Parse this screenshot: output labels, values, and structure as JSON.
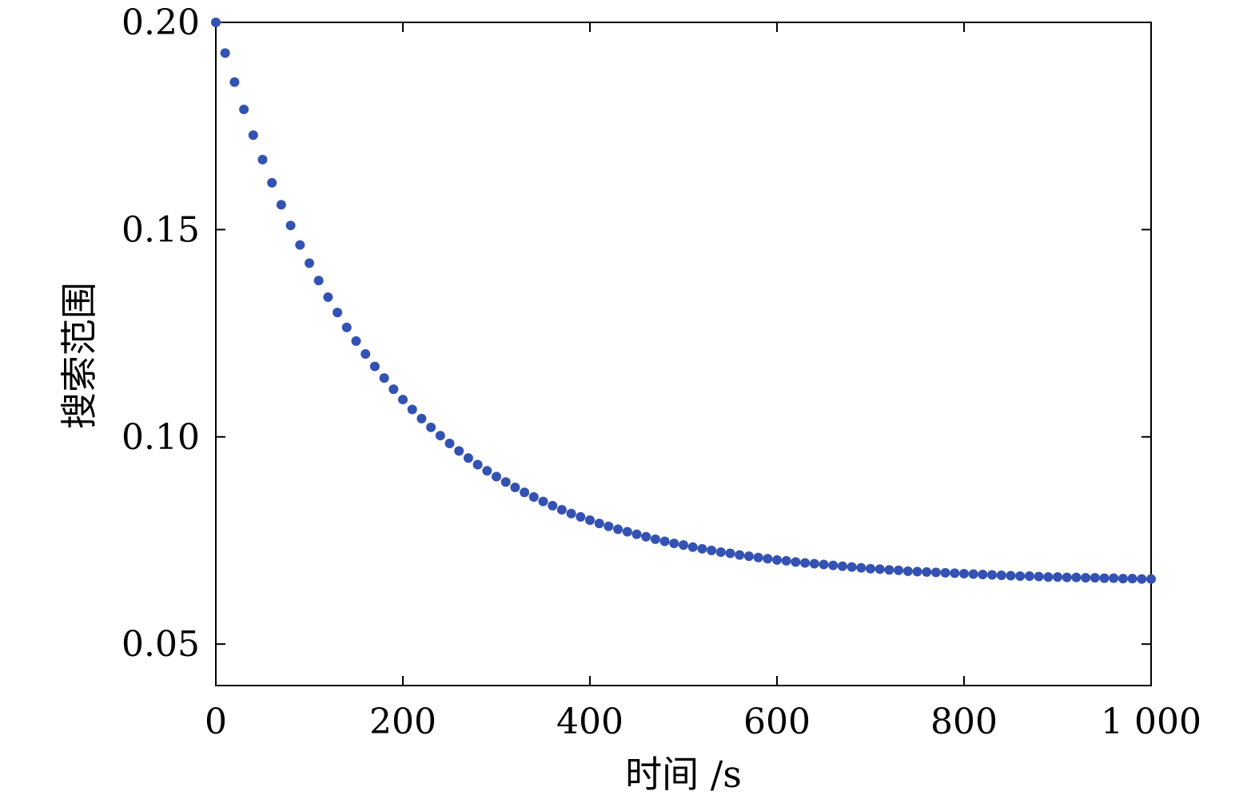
{
  "chart_data": {
    "type": "scatter",
    "title": "",
    "xlabel": "时间 /s",
    "ylabel": "搜索范围",
    "xlim": [
      0,
      1000
    ],
    "ylim": [
      0.04,
      0.2
    ],
    "grid": false,
    "legend": "none",
    "marker_color": "#3352b3",
    "axis_color": "#000000",
    "x_ticks": [
      0,
      200,
      400,
      600,
      800,
      1000
    ],
    "x_tick_labels": [
      "0",
      "200",
      "400",
      "600",
      "800",
      "1 000"
    ],
    "y_ticks": [
      0.05,
      0.1,
      0.15,
      0.2
    ],
    "y_tick_labels": [
      "0.05",
      "0.10",
      "0.15",
      "0.20"
    ],
    "x": [
      0,
      10,
      20,
      30,
      40,
      50,
      60,
      70,
      80,
      90,
      100,
      110,
      120,
      130,
      140,
      150,
      160,
      170,
      180,
      190,
      200,
      210,
      220,
      230,
      240,
      250,
      260,
      270,
      280,
      290,
      300,
      310,
      320,
      330,
      340,
      350,
      360,
      370,
      380,
      390,
      400,
      410,
      420,
      430,
      440,
      450,
      460,
      470,
      480,
      490,
      500,
      510,
      520,
      530,
      540,
      550,
      560,
      570,
      580,
      590,
      600,
      610,
      620,
      630,
      640,
      650,
      660,
      670,
      680,
      690,
      700,
      710,
      720,
      730,
      740,
      750,
      760,
      770,
      780,
      790,
      800,
      810,
      820,
      830,
      840,
      850,
      860,
      870,
      880,
      890,
      900,
      910,
      920,
      930,
      940,
      950,
      960,
      970,
      980,
      990,
      1000
    ],
    "y": [
      0.2,
      0.1926,
      0.1856,
      0.179,
      0.1728,
      0.1669,
      0.1613,
      0.156,
      0.151,
      0.1463,
      0.1419,
      0.1377,
      0.1337,
      0.13,
      0.1264,
      0.1231,
      0.12,
      0.117,
      0.1142,
      0.1115,
      0.109,
      0.1066,
      0.1044,
      0.1023,
      0.1003,
      0.0984,
      0.0966,
      0.0949,
      0.0933,
      0.0918,
      0.0904,
      0.0891,
      0.0878,
      0.0866,
      0.0855,
      0.0844,
      0.0834,
      0.0824,
      0.0815,
      0.0807,
      0.0799,
      0.0791,
      0.0784,
      0.0777,
      0.0771,
      0.0765,
      0.0759,
      0.0753,
      0.0748,
      0.0743,
      0.0739,
      0.0734,
      0.073,
      0.0726,
      0.0722,
      0.0719,
      0.0715,
      0.0712,
      0.0709,
      0.0706,
      0.0703,
      0.0701,
      0.0698,
      0.0696,
      0.0694,
      0.0692,
      0.069,
      0.0688,
      0.0686,
      0.0684,
      0.0682,
      0.0681,
      0.0679,
      0.0678,
      0.0676,
      0.0675,
      0.0674,
      0.0673,
      0.0672,
      0.0671,
      0.067,
      0.0669,
      0.0668,
      0.0667,
      0.0666,
      0.0665,
      0.0664,
      0.0664,
      0.0663,
      0.0662,
      0.0662,
      0.0661,
      0.0661,
      0.066,
      0.066,
      0.0659,
      0.0659,
      0.0658,
      0.0658,
      0.0657,
      0.0657
    ]
  }
}
